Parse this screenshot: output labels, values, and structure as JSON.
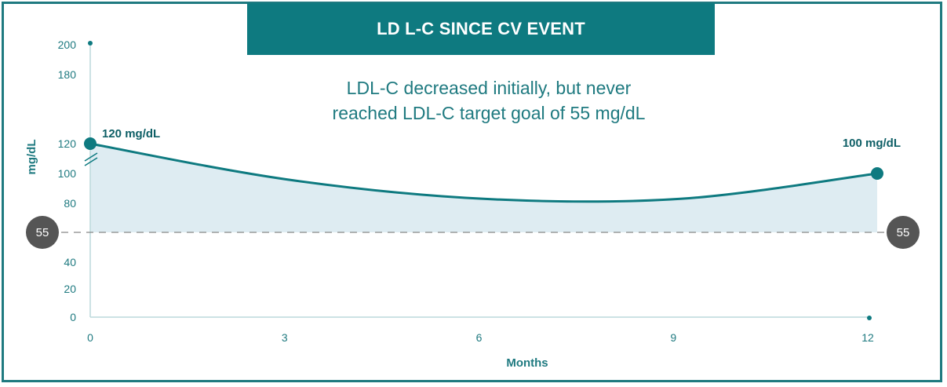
{
  "chart_data": {
    "type": "area",
    "title": "LD L-C SINCE CV EVENT",
    "subtitle_lines": [
      "LDL-C decreased initially, but never",
      "reached LDL-C target goal of 55 mg/dL"
    ],
    "xlabel": "Months",
    "ylabel": "mg/dL",
    "x_ticks": [
      0,
      3,
      6,
      9,
      12
    ],
    "y_ticks": [
      0,
      20,
      40,
      80,
      100,
      120,
      180,
      200
    ],
    "x": [
      0,
      3,
      6,
      9,
      12
    ],
    "y": [
      120,
      96,
      83,
      83,
      100
    ],
    "target": {
      "value": 55,
      "label": "55"
    },
    "annotations": [
      {
        "x": 0,
        "y": 120,
        "text": "120 mg/dL"
      },
      {
        "x": 12,
        "y": 100,
        "text": "100 mg/dL"
      }
    ],
    "axis_break": true,
    "colors": {
      "line": "#0e7a80",
      "fill": "#deecf2",
      "badge": "#555555",
      "accent": "#0e7a80"
    }
  }
}
